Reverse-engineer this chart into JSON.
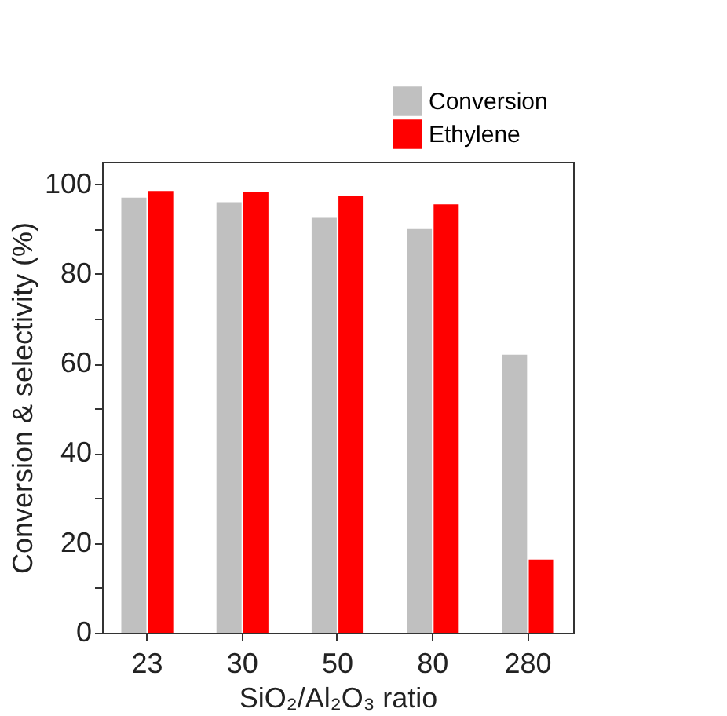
{
  "chart_data": {
    "type": "bar",
    "xlabel": "SiO₂/Al₂O₃ ratio",
    "ylabel": "Conversion & selectivity (%)",
    "categories": [
      "23",
      "30",
      "50",
      "80",
      "280"
    ],
    "series": [
      {
        "name": "Conversion",
        "color": "#c0c0c0",
        "values": [
          97,
          96,
          92.5,
          90,
          62
        ]
      },
      {
        "name": "Ethylene",
        "color": "#ff0000",
        "values": [
          98.5,
          98.3,
          97.3,
          95.5,
          16.3
        ]
      }
    ],
    "ylim": [
      0,
      105
    ],
    "yticks": [
      0,
      {
        "value": 10,
        "label": null
      },
      20,
      {
        "value": 30,
        "label": null
      },
      40,
      {
        "value": 50,
        "label": null
      },
      60,
      {
        "value": 70,
        "label": null
      },
      80,
      {
        "value": 90,
        "label": null
      },
      100
    ],
    "grid": false,
    "legend": "top right"
  }
}
